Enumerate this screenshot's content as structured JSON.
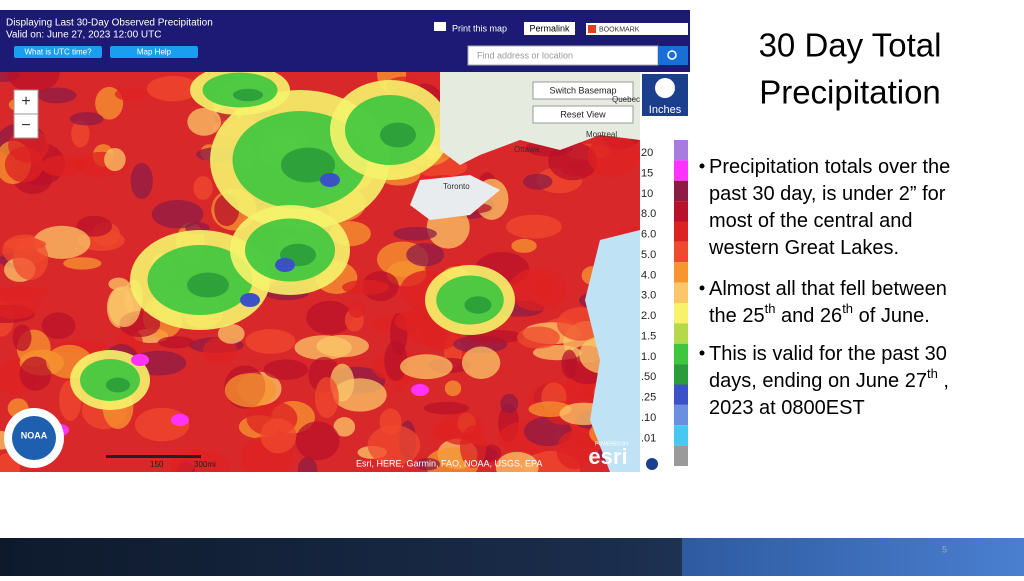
{
  "slide": {
    "title_lines": [
      "30 Day Total",
      "Precipitation"
    ],
    "bullets": [
      [
        [
          {
            "text": "Precipitation totals  over the"
          }
        ],
        [
          {
            "text": "past 30 day, is under 2” for"
          }
        ],
        [
          {
            "text": "most of the central and"
          }
        ],
        [
          {
            "text": "western Great Lakes."
          }
        ]
      ],
      [
        [
          {
            "text": "Almost all that fell between"
          }
        ],
        [
          {
            "text": "the 25"
          },
          {
            "text": "th",
            "sup": true
          },
          {
            "text": " and 26"
          },
          {
            "text": "th",
            "sup": true
          },
          {
            "text": " of June."
          }
        ]
      ],
      [
        [
          {
            "text": "This is valid for the past 30"
          }
        ],
        [
          {
            "text": "days, ending on June 27"
          },
          {
            "text": "th",
            "sup": true
          },
          {
            "text": " ,"
          }
        ],
        [
          {
            "text": "2023 at 0800EST"
          }
        ]
      ]
    ],
    "page_number": "5"
  },
  "map": {
    "header": {
      "title": "Displaying Last 30-Day Observed Precipitation",
      "valid": "Valid on: June 27, 2023 12:00 UTC",
      "utc_button": "What is UTC time?",
      "help_button": "Map Help",
      "print": "Print this map",
      "permalink": "Permalink",
      "bookmark": "BOOKMARK",
      "search_placeholder": "Find address or location"
    },
    "controls": {
      "zoom_in": "+",
      "zoom_out": "−",
      "switch_basemap": "Switch Basemap",
      "reset_view": "Reset View"
    },
    "places": [
      "Ottawa",
      "Toronto",
      "Montreal",
      "Quebec"
    ],
    "legend": {
      "unit": "Inches",
      "labels": [
        "20",
        "15",
        "10",
        "8.0",
        "6.0",
        "5.0",
        "4.0",
        "3.0",
        "2.0",
        "1.5",
        "1.0",
        ".50",
        ".25",
        ".10",
        ".01"
      ],
      "colors": [
        "#a77be0",
        "#ff33ff",
        "#8e1b46",
        "#b8122a",
        "#dd2222",
        "#f04a2e",
        "#f7962f",
        "#fbc768",
        "#f6f36b",
        "#b5d94a",
        "#3ec63e",
        "#2a9c3a",
        "#3b52c7",
        "#6a8fe0",
        "#46c8f0",
        "#9a9a9a"
      ]
    },
    "scale": [
      "150",
      "300mi"
    ],
    "attribution": "Esri, HERE, Garmin, FAO, NOAA, USGS, EPA",
    "powered_by": "POWERED BY",
    "esri": "esri",
    "noaa": "NOAA"
  }
}
